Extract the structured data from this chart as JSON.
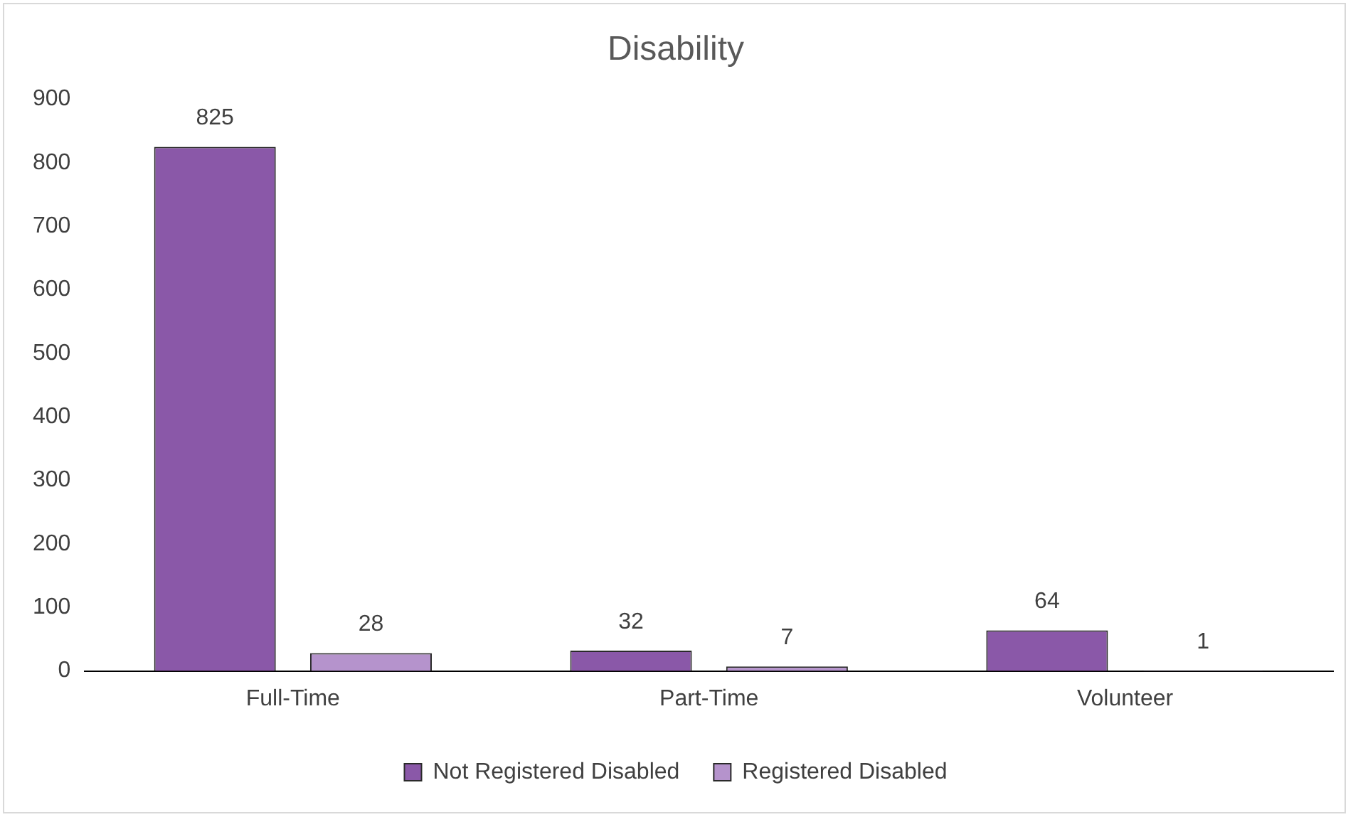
{
  "chart_data": {
    "type": "bar",
    "title": "Disability",
    "categories": [
      "Full-Time",
      "Part-Time",
      "Volunteer"
    ],
    "series": [
      {
        "name": "Not Registered Disabled",
        "color": "#8a58a8",
        "values": [
          825,
          32,
          64
        ]
      },
      {
        "name": "Registered Disabled",
        "color": "#b593cc",
        "values": [
          28,
          7,
          1
        ]
      }
    ],
    "ylim": [
      0,
      900
    ],
    "yticks": [
      0,
      100,
      200,
      300,
      400,
      500,
      600,
      700,
      800,
      900
    ],
    "grid": false,
    "legend": "bottom",
    "data_labels": true
  }
}
